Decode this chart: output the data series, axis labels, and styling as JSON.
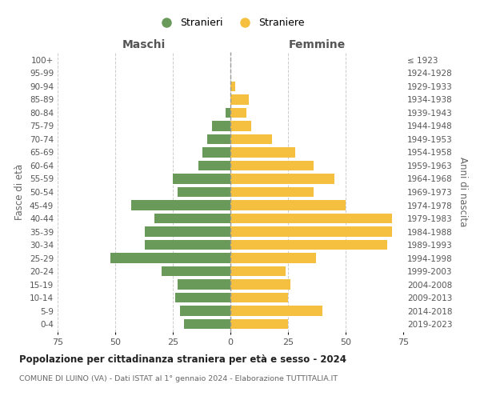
{
  "age_groups": [
    "0-4",
    "5-9",
    "10-14",
    "15-19",
    "20-24",
    "25-29",
    "30-34",
    "35-39",
    "40-44",
    "45-49",
    "50-54",
    "55-59",
    "60-64",
    "65-69",
    "70-74",
    "75-79",
    "80-84",
    "85-89",
    "90-94",
    "95-99",
    "100+"
  ],
  "birth_years": [
    "2019-2023",
    "2014-2018",
    "2009-2013",
    "2004-2008",
    "1999-2003",
    "1994-1998",
    "1989-1993",
    "1984-1988",
    "1979-1983",
    "1974-1978",
    "1969-1973",
    "1964-1968",
    "1959-1963",
    "1954-1958",
    "1949-1953",
    "1944-1948",
    "1939-1943",
    "1934-1938",
    "1929-1933",
    "1924-1928",
    "≤ 1923"
  ],
  "males": [
    20,
    22,
    24,
    23,
    30,
    52,
    37,
    37,
    33,
    43,
    23,
    25,
    14,
    12,
    10,
    8,
    2,
    0,
    0,
    0,
    0
  ],
  "females": [
    25,
    40,
    25,
    26,
    24,
    37,
    68,
    70,
    70,
    50,
    36,
    45,
    36,
    28,
    18,
    9,
    7,
    8,
    2,
    0,
    0
  ],
  "male_color": "#6a9a5a",
  "female_color": "#f5c040",
  "background_color": "#ffffff",
  "grid_color": "#cccccc",
  "title": "Popolazione per cittadinanza straniera per età e sesso - 2024",
  "subtitle": "COMUNE DI LUINO (VA) - Dati ISTAT al 1° gennaio 2024 - Elaborazione TUTTITALIA.IT",
  "xlabel_left": "Maschi",
  "xlabel_right": "Femmine",
  "ylabel_left": "Fasce di età",
  "ylabel_right": "Anni di nascita",
  "legend_male": "Stranieri",
  "legend_female": "Straniere",
  "xlim": 75,
  "bar_height": 0.75
}
